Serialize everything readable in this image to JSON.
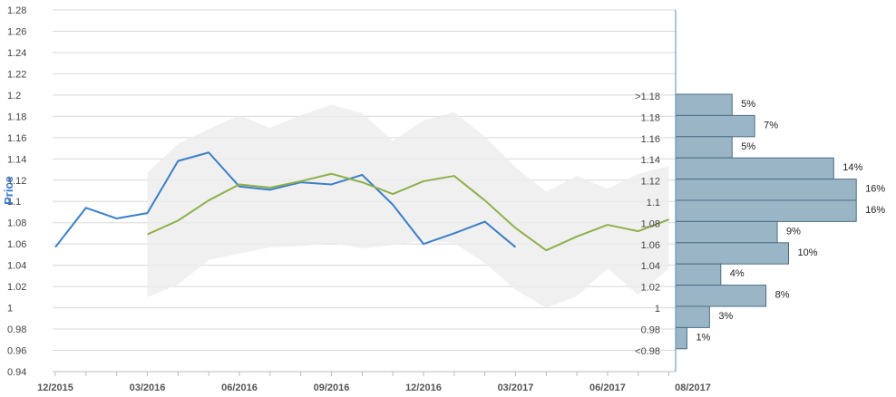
{
  "chart_data": {
    "type": "line",
    "ylabel": "Price",
    "ylim": [
      0.94,
      1.28
    ],
    "y_ticks": [
      "1.28",
      "1.26",
      "1.24",
      "1.22",
      "1.2",
      "1.18",
      "1.16",
      "1.14",
      "1.12",
      "1.1",
      "1.08",
      "1.06",
      "1.04",
      "1.02",
      "1",
      "0.98",
      "0.96",
      "0.94"
    ],
    "x_ticks": [
      "12/2015",
      "03/2016",
      "06/2016",
      "09/2016",
      "12/2016",
      "03/2017",
      "06/2017",
      "08/2017"
    ],
    "grid": true,
    "series": [
      {
        "color": "#3a7fc8",
        "x": [
          "2015-12",
          "2016-01",
          "2016-02",
          "2016-03",
          "2016-04",
          "2016-05",
          "2016-06",
          "2016-07",
          "2016-08",
          "2016-09",
          "2016-10",
          "2016-11",
          "2016-12",
          "2017-01",
          "2017-02",
          "2017-03"
        ],
        "y": [
          1.057,
          1.094,
          1.084,
          1.089,
          1.138,
          1.146,
          1.114,
          1.111,
          1.118,
          1.116,
          1.125,
          1.097,
          1.06,
          1.07,
          1.081,
          1.057
        ]
      },
      {
        "color": "#8db04a",
        "x": [
          "2016-03",
          "2016-04",
          "2016-05",
          "2016-06",
          "2016-07",
          "2016-08",
          "2016-09",
          "2016-10",
          "2016-11",
          "2016-12",
          "2017-01",
          "2017-02",
          "2017-03",
          "2017-04",
          "2017-05",
          "2017-06",
          "2017-07",
          "2017-08"
        ],
        "y": [
          1.069,
          1.082,
          1.101,
          1.116,
          1.113,
          1.119,
          1.126,
          1.118,
          1.107,
          1.119,
          1.124,
          1.101,
          1.075,
          1.054,
          1.067,
          1.078,
          1.072,
          1.083
        ]
      }
    ],
    "band": {
      "color": "#ececec",
      "x": [
        "2016-03",
        "2016-04",
        "2016-05",
        "2016-06",
        "2016-07",
        "2016-08",
        "2016-09",
        "2016-10",
        "2016-11",
        "2016-12",
        "2017-01",
        "2017-02",
        "2017-03",
        "2017-04",
        "2017-05",
        "2017-06",
        "2017-07",
        "2017-08"
      ],
      "upper": [
        1.127,
        1.154,
        1.168,
        1.181,
        1.169,
        1.181,
        1.191,
        1.183,
        1.157,
        1.176,
        1.184,
        1.161,
        1.132,
        1.109,
        1.124,
        1.112,
        1.126,
        1.133
      ],
      "lower": [
        1.01,
        1.022,
        1.045,
        1.051,
        1.057,
        1.058,
        1.061,
        1.056,
        1.059,
        1.063,
        1.061,
        1.042,
        1.017,
        1.0,
        1.011,
        1.037,
        1.012,
        1.037
      ]
    },
    "histogram": {
      "color": "#9ab5c6",
      "bins": [
        {
          "label": ">1.18",
          "pct_label": "5%",
          "value": 5
        },
        {
          "label": "1.18",
          "pct_label": "7%",
          "value": 7
        },
        {
          "label": "1.16",
          "pct_label": "5%",
          "value": 5
        },
        {
          "label": "1.14",
          "pct_label": "14%",
          "value": 14
        },
        {
          "label": "1.12",
          "pct_label": "16%",
          "value": 16
        },
        {
          "label": "1.1",
          "pct_label": "16%",
          "value": 16
        },
        {
          "label": "1.08",
          "pct_label": "9%",
          "value": 9
        },
        {
          "label": "1.06",
          "pct_label": "10%",
          "value": 10
        },
        {
          "label": "1.04",
          "pct_label": "4%",
          "value": 4
        },
        {
          "label": "1.02",
          "pct_label": "8%",
          "value": 8
        },
        {
          "label": "1",
          "pct_label": "3%",
          "value": 3
        },
        {
          "label": "0.98",
          "pct_label": "1%",
          "value": 1
        },
        {
          "label": "<0.98",
          "pct_label": "",
          "value": 0
        }
      ]
    }
  }
}
